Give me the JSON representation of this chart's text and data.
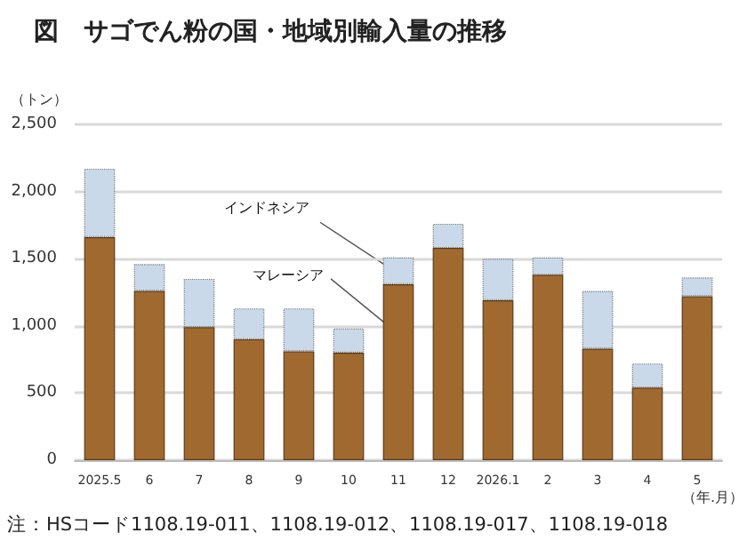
{
  "chart_data": {
    "type": "bar",
    "title": "図　サゴでん粉の国・地域別輸入量の推移",
    "ylabel": "（トン）",
    "xlabel": "（年.月）",
    "categories": [
      "2025.5",
      "6",
      "7",
      "8",
      "9",
      "10",
      "11",
      "12",
      "2026.1",
      "2",
      "3",
      "4",
      "5"
    ],
    "stacked": true,
    "series": [
      {
        "name": "マレーシア",
        "color": "#a0692f",
        "values": [
          1660,
          1260,
          990,
          900,
          810,
          800,
          1310,
          1580,
          1190,
          1380,
          830,
          540,
          1220
        ]
      },
      {
        "name": "インドネシア",
        "color": "#c9d9ea",
        "values": [
          510,
          200,
          360,
          230,
          320,
          180,
          200,
          180,
          310,
          130,
          430,
          180,
          140
        ]
      }
    ],
    "ylim": [
      0,
      2500
    ],
    "yticks": [
      {
        "value": 0,
        "label": "0"
      },
      {
        "value": 500,
        "label": "500"
      },
      {
        "value": 1000,
        "label": "1,000"
      },
      {
        "value": 1500,
        "label": "1,500"
      },
      {
        "value": 2000,
        "label": "2,000"
      },
      {
        "value": 2500,
        "label": "2,500"
      }
    ],
    "grid": "y",
    "legend": false,
    "annotations": [
      "注：HSコード1108.19-011、1108.19-012、1108.19-017、1108.19-018"
    ]
  }
}
